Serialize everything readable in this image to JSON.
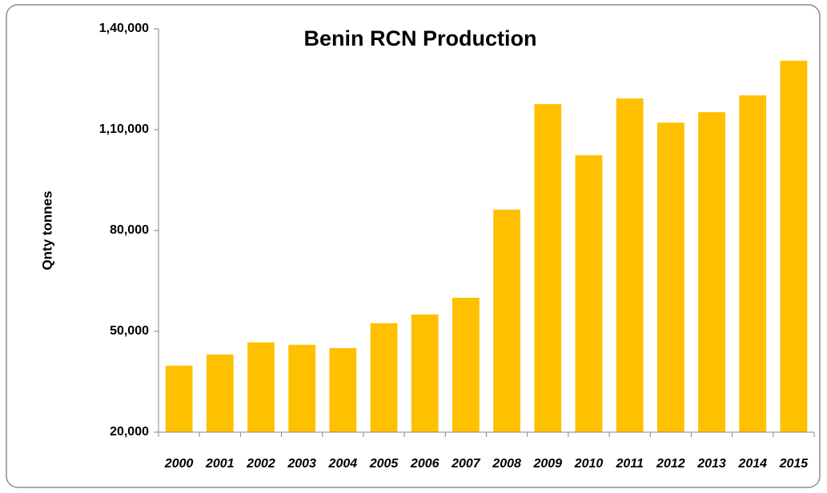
{
  "chart_data": {
    "type": "bar",
    "title": "Benin RCN Production",
    "y_label": "Qnty tonnes",
    "categories": [
      "2000",
      "2001",
      "2002",
      "2003",
      "2004",
      "2005",
      "2006",
      "2007",
      "2008",
      "2009",
      "2010",
      "2011",
      "2012",
      "2013",
      "2014",
      "2015"
    ],
    "values": [
      39800,
      43100,
      46700,
      46000,
      45000,
      52400,
      55000,
      60000,
      86200,
      117600,
      102400,
      119300,
      112100,
      115200,
      120200,
      130500
    ],
    "color": "#ffc000",
    "ylim": [
      20000,
      140000
    ],
    "yticks": [
      {
        "value": 20000,
        "label": "20,000"
      },
      {
        "value": 50000,
        "label": "50,000"
      },
      {
        "value": 80000,
        "label": "80,000"
      },
      {
        "value": 110000,
        "label": "1,10,000"
      },
      {
        "value": 140000,
        "label": "1,40,000"
      }
    ],
    "grid": false
  }
}
